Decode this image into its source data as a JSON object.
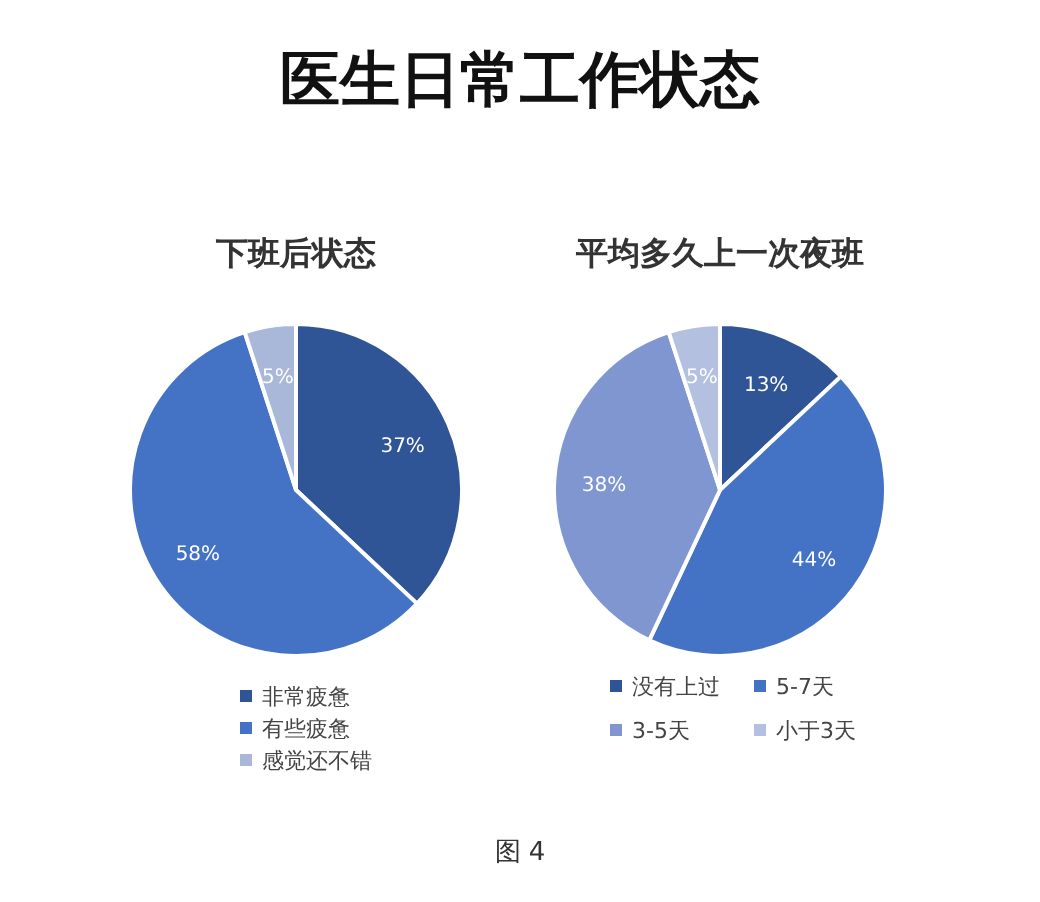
{
  "chart_data": [
    {
      "type": "other",
      "title": "医生日常工作状态",
      "annotations": [
        "图 4"
      ]
    },
    {
      "type": "pie",
      "title": "下班后状态",
      "categories": [
        "非常疲惫",
        "有些疲惫",
        "感觉还不错"
      ],
      "values": [
        37,
        58,
        5
      ],
      "value_labels": [
        "37%",
        "58%",
        "5%"
      ],
      "colors": [
        "#2f5597",
        "#4472c4",
        "#a9b7d9"
      ],
      "legend": "bottom"
    },
    {
      "type": "pie",
      "title": "平均多久上一次夜班",
      "categories": [
        "没有上过",
        "5-7天",
        "3-5天",
        "小于3天"
      ],
      "values": [
        13,
        44,
        38,
        5
      ],
      "value_labels": [
        "13%",
        "44%",
        "38%",
        "5%"
      ],
      "colors": [
        "#2f5597",
        "#4472c4",
        "#7f96d0",
        "#b4c0e0"
      ],
      "legend": "bottom"
    }
  ]
}
